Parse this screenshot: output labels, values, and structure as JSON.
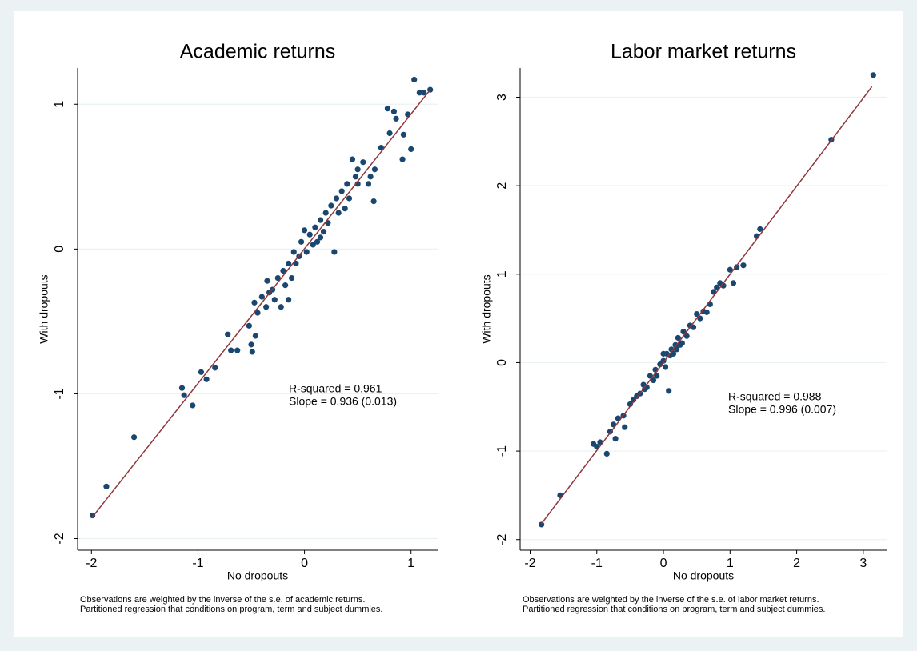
{
  "chart_data": [
    {
      "type": "scatter",
      "title": "Academic returns",
      "x_label": "No dropouts",
      "y_label": "With dropouts",
      "x": [
        -1.99,
        -1.86,
        -1.6,
        -1.15,
        -1.13,
        -1.05,
        -0.97,
        -0.92,
        -0.84,
        -0.72,
        -0.69,
        -0.63,
        -0.52,
        -0.5,
        -0.49,
        -0.47,
        -0.46,
        -0.44,
        -0.4,
        -0.36,
        -0.33,
        -0.3,
        -0.28,
        -0.25,
        -0.22,
        -0.2,
        -0.18,
        -0.15,
        -0.12,
        -0.1,
        -0.08,
        -0.05,
        -0.03,
        0,
        0.02,
        0.05,
        0.08,
        0.1,
        0.12,
        0.15,
        0.18,
        0.2,
        0.22,
        0.25,
        0.28,
        0.3,
        0.32,
        0.35,
        0.38,
        0.4,
        0.42,
        0.45,
        0.48,
        0.5,
        0.55,
        0.6,
        0.62,
        0.65,
        0.66,
        0.72,
        0.78,
        0.8,
        0.84,
        0.86,
        0.92,
        0.93,
        0.97,
        1.0,
        1.03,
        1.08,
        1.12,
        1.18,
        -0.15,
        0.5,
        -0.35,
        0.15
      ],
      "values": [
        -1.84,
        -1.64,
        -1.3,
        -0.96,
        -1.01,
        -1.08,
        -0.85,
        -0.9,
        -0.82,
        -0.59,
        -0.7,
        -0.7,
        -0.53,
        -0.66,
        -0.71,
        -0.37,
        -0.6,
        -0.44,
        -0.33,
        -0.4,
        -0.3,
        -0.28,
        -0.35,
        -0.2,
        -0.4,
        -0.15,
        -0.25,
        -0.1,
        -0.2,
        -0.02,
        -0.1,
        -0.05,
        0.05,
        0.13,
        -0.02,
        0.1,
        0.03,
        0.15,
        0.05,
        0.2,
        0.12,
        0.25,
        0.18,
        0.3,
        -0.02,
        0.35,
        0.25,
        0.4,
        0.28,
        0.45,
        0.35,
        0.62,
        0.5,
        0.55,
        0.6,
        0.45,
        0.5,
        0.33,
        0.55,
        0.7,
        0.97,
        0.8,
        0.95,
        0.9,
        0.62,
        0.79,
        0.93,
        0.69,
        1.17,
        1.08,
        1.08,
        1.1,
        -0.35,
        0.45,
        -0.22,
        0.08
      ],
      "color": "#1a476f",
      "fit": {
        "x": [
          -1.99,
          1.18
        ],
        "values": [
          -1.85,
          1.1
        ],
        "color": "#90353b"
      },
      "xlim": [
        -2.13,
        1.25
      ],
      "ylim": [
        -2.08,
        1.25
      ],
      "xticks": [
        -2,
        -1,
        0,
        1
      ],
      "yticks": [
        -2,
        -1,
        0,
        1
      ],
      "grid": true,
      "annotations": [
        "R-squared = 0.961",
        "Slope = 0.936 (0.013)"
      ],
      "notes": [
        "Observations are weighted by the inverse of the s.e. of academic returns.",
        "Partitioned regression that conditions on program, term and subject dummies."
      ]
    },
    {
      "type": "scatter",
      "title": "Labor market returns",
      "x_label": "No dropouts",
      "y_label": "With dropouts",
      "x": [
        -1.83,
        -1.55,
        -1.05,
        -1.0,
        -0.95,
        -0.85,
        -0.8,
        -0.75,
        -0.72,
        -0.68,
        -0.6,
        -0.58,
        -0.5,
        -0.45,
        -0.4,
        -0.35,
        -0.3,
        -0.25,
        -0.2,
        -0.15,
        -0.12,
        -0.1,
        -0.05,
        0,
        0.03,
        0.05,
        0.08,
        0.1,
        0.12,
        0.15,
        0.18,
        0.2,
        0.22,
        0.25,
        0.3,
        0.35,
        0.4,
        0.45,
        0.5,
        0.55,
        0.6,
        0.65,
        0.7,
        0.75,
        0.8,
        0.85,
        0.9,
        1.0,
        1.05,
        1.1,
        1.2,
        1.4,
        1.45,
        2.52,
        3.15,
        0.0,
        0.28,
        -0.28
      ],
      "values": [
        -1.83,
        -1.5,
        -0.92,
        -0.95,
        -0.9,
        -1.03,
        -0.78,
        -0.7,
        -0.86,
        -0.63,
        -0.6,
        -0.73,
        -0.47,
        -0.42,
        -0.38,
        -0.35,
        -0.25,
        -0.28,
        -0.15,
        -0.2,
        -0.08,
        -0.15,
        -0.02,
        0.02,
        -0.05,
        0.1,
        -0.32,
        0.08,
        0.15,
        0.1,
        0.2,
        0.15,
        0.28,
        0.2,
        0.35,
        0.3,
        0.42,
        0.4,
        0.55,
        0.5,
        0.58,
        0.57,
        0.66,
        0.8,
        0.85,
        0.9,
        0.87,
        1.05,
        0.9,
        1.08,
        1.1,
        1.43,
        1.51,
        2.52,
        3.25,
        0.1,
        0.22,
        -0.3
      ],
      "color": "#1a476f",
      "fit": {
        "x": [
          -1.83,
          3.13
        ],
        "values": [
          -1.82,
          3.12
        ],
        "color": "#90353b"
      },
      "xlim": [
        -2.15,
        3.35
      ],
      "ylim": [
        -2.12,
        3.33
      ],
      "xticks": [
        -2,
        -1,
        0,
        1,
        2,
        3
      ],
      "yticks": [
        -2,
        -1,
        0,
        1,
        2,
        3
      ],
      "grid": true,
      "annotations": [
        "R-squared = 0.988",
        "Slope = 0.996 (0.007)"
      ],
      "notes": [
        "Observations are weighted by the inverse of the s.e. of labor market returns.",
        "Partitioned regression that conditions on program, term and subject dummies."
      ]
    }
  ]
}
